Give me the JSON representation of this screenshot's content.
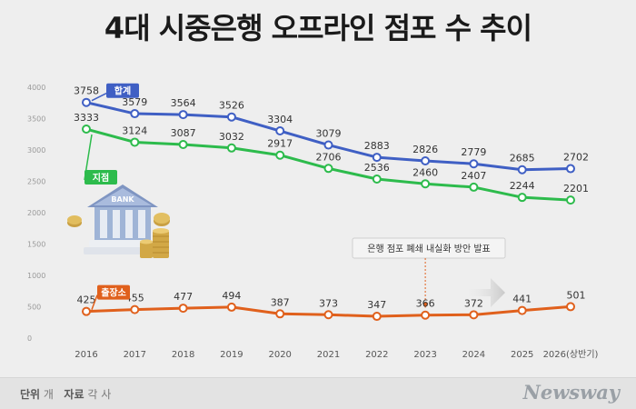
{
  "page": {
    "title": "4대 시중은행 오프라인 점포 수 추이",
    "footer_unit_label": "단위",
    "footer_unit_value": "개",
    "footer_source_label": "자료",
    "footer_source_value": "각 사",
    "brand": "Newsway"
  },
  "chart_data": {
    "type": "line",
    "categories": [
      "2016",
      "2017",
      "2018",
      "2019",
      "2020",
      "2021",
      "2022",
      "2023",
      "2024",
      "2025",
      "2026(상반기)"
    ],
    "ylim": [
      0,
      4000
    ],
    "yticks": [
      0,
      500,
      1000,
      1500,
      2000,
      2500,
      3000,
      3500,
      4000
    ],
    "grid": false,
    "series": [
      {
        "name": "합계",
        "color": "#3f5fc4",
        "values": [
          3758,
          3579,
          3564,
          3526,
          3304,
          3079,
          2883,
          2826,
          2779,
          2685,
          2702
        ]
      },
      {
        "name": "지점",
        "color": "#2dbb4c",
        "values": [
          3333,
          3124,
          3087,
          3032,
          2917,
          2706,
          2536,
          2460,
          2407,
          2244,
          2201
        ]
      },
      {
        "name": "출장소",
        "color": "#e0601c",
        "values": [
          425,
          455,
          477,
          494,
          387,
          373,
          347,
          366,
          372,
          441,
          501
        ]
      }
    ],
    "annotation": {
      "text": "은행 점포 폐쇄 내실화 방안 발표",
      "category": "2023"
    },
    "illustration_label": "BANK"
  }
}
